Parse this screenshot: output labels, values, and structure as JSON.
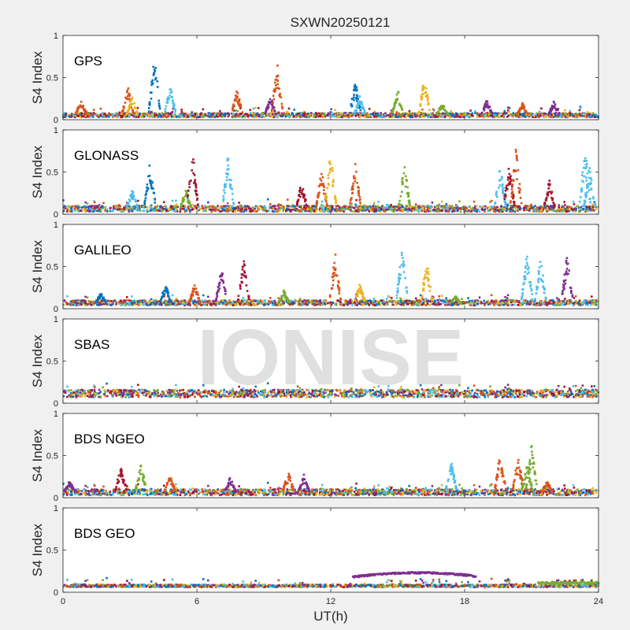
{
  "figure": {
    "title": "SXWN20250121",
    "xlabel": "UT(h)",
    "watermark": "IONISE",
    "background": "#f0f0f0"
  },
  "series_colors": [
    "#0072BD",
    "#D95319",
    "#EDB120",
    "#7E2F8E",
    "#77AC30",
    "#4DBEEE",
    "#A2142F"
  ],
  "chart_data": [
    {
      "type": "scatter",
      "panel_label": "GPS",
      "ylabel": "S4 Index",
      "xlim": [
        0,
        24
      ],
      "ylim": [
        0,
        1
      ],
      "xticks": [
        0,
        6,
        12,
        18,
        24
      ],
      "yticks": [
        0,
        0.5,
        1
      ],
      "yticklabels": [
        "0",
        "0.5",
        "1"
      ],
      "baseline": [
        0.03,
        0.08
      ],
      "spikes": [
        {
          "x": 0.8,
          "peak": 0.25,
          "c": 1
        },
        {
          "x": 2.9,
          "peak": 0.42,
          "c": 1
        },
        {
          "x": 3.1,
          "peak": 0.3,
          "c": 2
        },
        {
          "x": 4.1,
          "peak": 0.8,
          "c": 0
        },
        {
          "x": 4.8,
          "peak": 0.45,
          "c": 5
        },
        {
          "x": 7.8,
          "peak": 0.37,
          "c": 1
        },
        {
          "x": 9.6,
          "peak": 0.71,
          "c": 1
        },
        {
          "x": 9.3,
          "peak": 0.3,
          "c": 3
        },
        {
          "x": 13.1,
          "peak": 0.47,
          "c": 0
        },
        {
          "x": 13.3,
          "peak": 0.3,
          "c": 5
        },
        {
          "x": 15.0,
          "peak": 0.37,
          "c": 4
        },
        {
          "x": 16.2,
          "peak": 0.55,
          "c": 2
        },
        {
          "x": 17.0,
          "peak": 0.2,
          "c": 4
        },
        {
          "x": 19.0,
          "peak": 0.25,
          "c": 3
        },
        {
          "x": 20.6,
          "peak": 0.2,
          "c": 1
        },
        {
          "x": 22.0,
          "peak": 0.22,
          "c": 3
        }
      ]
    },
    {
      "type": "scatter",
      "panel_label": "GLONASS",
      "ylabel": "S4 Index",
      "xlim": [
        0,
        24
      ],
      "ylim": [
        0,
        1
      ],
      "xticks": [
        0,
        6,
        12,
        18,
        24
      ],
      "yticks": [
        0,
        0.5,
        1
      ],
      "yticklabels": [
        "0",
        "0.5",
        "1"
      ],
      "baseline": [
        0.03,
        0.1
      ],
      "spikes": [
        {
          "x": 3.1,
          "peak": 0.3,
          "c": 5
        },
        {
          "x": 3.9,
          "peak": 0.65,
          "c": 0
        },
        {
          "x": 5.5,
          "peak": 0.3,
          "c": 4
        },
        {
          "x": 5.8,
          "peak": 0.8,
          "c": 6
        },
        {
          "x": 7.4,
          "peak": 0.73,
          "c": 5
        },
        {
          "x": 10.7,
          "peak": 0.4,
          "c": 6
        },
        {
          "x": 11.6,
          "peak": 0.55,
          "c": 1
        },
        {
          "x": 12.0,
          "peak": 0.78,
          "c": 2
        },
        {
          "x": 13.1,
          "peak": 0.62,
          "c": 1
        },
        {
          "x": 15.3,
          "peak": 0.62,
          "c": 4
        },
        {
          "x": 19.6,
          "peak": 0.6,
          "c": 5
        },
        {
          "x": 20.0,
          "peak": 0.6,
          "c": 6
        },
        {
          "x": 20.3,
          "peak": 0.83,
          "c": 1
        },
        {
          "x": 21.8,
          "peak": 0.42,
          "c": 6
        },
        {
          "x": 23.4,
          "peak": 0.85,
          "c": 5
        },
        {
          "x": 23.6,
          "peak": 0.6,
          "c": 5
        }
      ]
    },
    {
      "type": "scatter",
      "panel_label": "GALILEO",
      "ylabel": "S4 Index",
      "xlim": [
        0,
        24
      ],
      "ylim": [
        0,
        1
      ],
      "xticks": [
        0,
        6,
        12,
        18,
        24
      ],
      "yticks": [
        0,
        0.5,
        1
      ],
      "yticklabels": [
        "0",
        "0.5",
        "1"
      ],
      "baseline": [
        0.04,
        0.1
      ],
      "spikes": [
        {
          "x": 1.7,
          "peak": 0.2,
          "c": 0
        },
        {
          "x": 4.6,
          "peak": 0.3,
          "c": 0
        },
        {
          "x": 5.9,
          "peak": 0.3,
          "c": 1
        },
        {
          "x": 7.1,
          "peak": 0.5,
          "c": 3
        },
        {
          "x": 8.1,
          "peak": 0.6,
          "c": 6
        },
        {
          "x": 9.9,
          "peak": 0.22,
          "c": 4
        },
        {
          "x": 12.2,
          "peak": 0.68,
          "c": 1
        },
        {
          "x": 13.3,
          "peak": 0.3,
          "c": 2
        },
        {
          "x": 15.2,
          "peak": 0.78,
          "c": 5
        },
        {
          "x": 16.3,
          "peak": 0.6,
          "c": 2
        },
        {
          "x": 20.8,
          "peak": 0.68,
          "c": 5
        },
        {
          "x": 21.4,
          "peak": 0.62,
          "c": 5
        },
        {
          "x": 22.6,
          "peak": 0.67,
          "c": 3
        },
        {
          "x": 17.6,
          "peak": 0.15,
          "c": 4
        }
      ]
    },
    {
      "type": "scatter",
      "panel_label": "SBAS",
      "ylabel": "S4 Index",
      "xlim": [
        0,
        24
      ],
      "ylim": [
        0,
        1
      ],
      "xticks": [
        0,
        6,
        12,
        18,
        24
      ],
      "yticks": [
        0,
        0.5,
        1
      ],
      "yticklabels": [
        "0",
        "0.5",
        "1"
      ],
      "baseline": [
        0.07,
        0.16
      ],
      "spikes": []
    },
    {
      "type": "scatter",
      "panel_label": "BDS NGEO",
      "ylabel": "S4 Index",
      "xlim": [
        0,
        24
      ],
      "ylim": [
        0,
        1
      ],
      "xticks": [
        0,
        6,
        12,
        18,
        24
      ],
      "yticks": [
        0,
        0.5,
        1
      ],
      "yticklabels": [
        "0",
        "0.5",
        "1"
      ],
      "baseline": [
        0.03,
        0.1
      ],
      "spikes": [
        {
          "x": 0.3,
          "peak": 0.2,
          "c": 3
        },
        {
          "x": 2.6,
          "peak": 0.4,
          "c": 6
        },
        {
          "x": 3.5,
          "peak": 0.42,
          "c": 4
        },
        {
          "x": 4.8,
          "peak": 0.28,
          "c": 1
        },
        {
          "x": 7.5,
          "peak": 0.25,
          "c": 3
        },
        {
          "x": 10.1,
          "peak": 0.32,
          "c": 1
        },
        {
          "x": 10.8,
          "peak": 0.28,
          "c": 3
        },
        {
          "x": 17.4,
          "peak": 0.48,
          "c": 5
        },
        {
          "x": 19.6,
          "peak": 0.55,
          "c": 1
        },
        {
          "x": 20.4,
          "peak": 0.5,
          "c": 1
        },
        {
          "x": 20.8,
          "peak": 0.4,
          "c": 4
        },
        {
          "x": 21.0,
          "peak": 0.65,
          "c": 4
        },
        {
          "x": 21.7,
          "peak": 0.2,
          "c": 1
        }
      ]
    },
    {
      "type": "scatter",
      "panel_label": "BDS GEO",
      "ylabel": "S4 Index",
      "xlim": [
        0,
        24
      ],
      "ylim": [
        0,
        1
      ],
      "xticks": [
        0,
        6,
        12,
        18,
        24
      ],
      "yticks": [
        0,
        0.5,
        1
      ],
      "yticklabels": [
        "0",
        "0.5",
        "1"
      ],
      "baseline": [
        0.06,
        0.09
      ],
      "spikes": [],
      "arc": {
        "x_start": 13.0,
        "x_end": 18.5,
        "y_start": 0.18,
        "y_peak": 0.23,
        "y_end": 0.19,
        "c": 3
      },
      "tail": {
        "x_start": 21.3,
        "x_end": 24,
        "y": 0.11,
        "c": 4
      }
    }
  ]
}
